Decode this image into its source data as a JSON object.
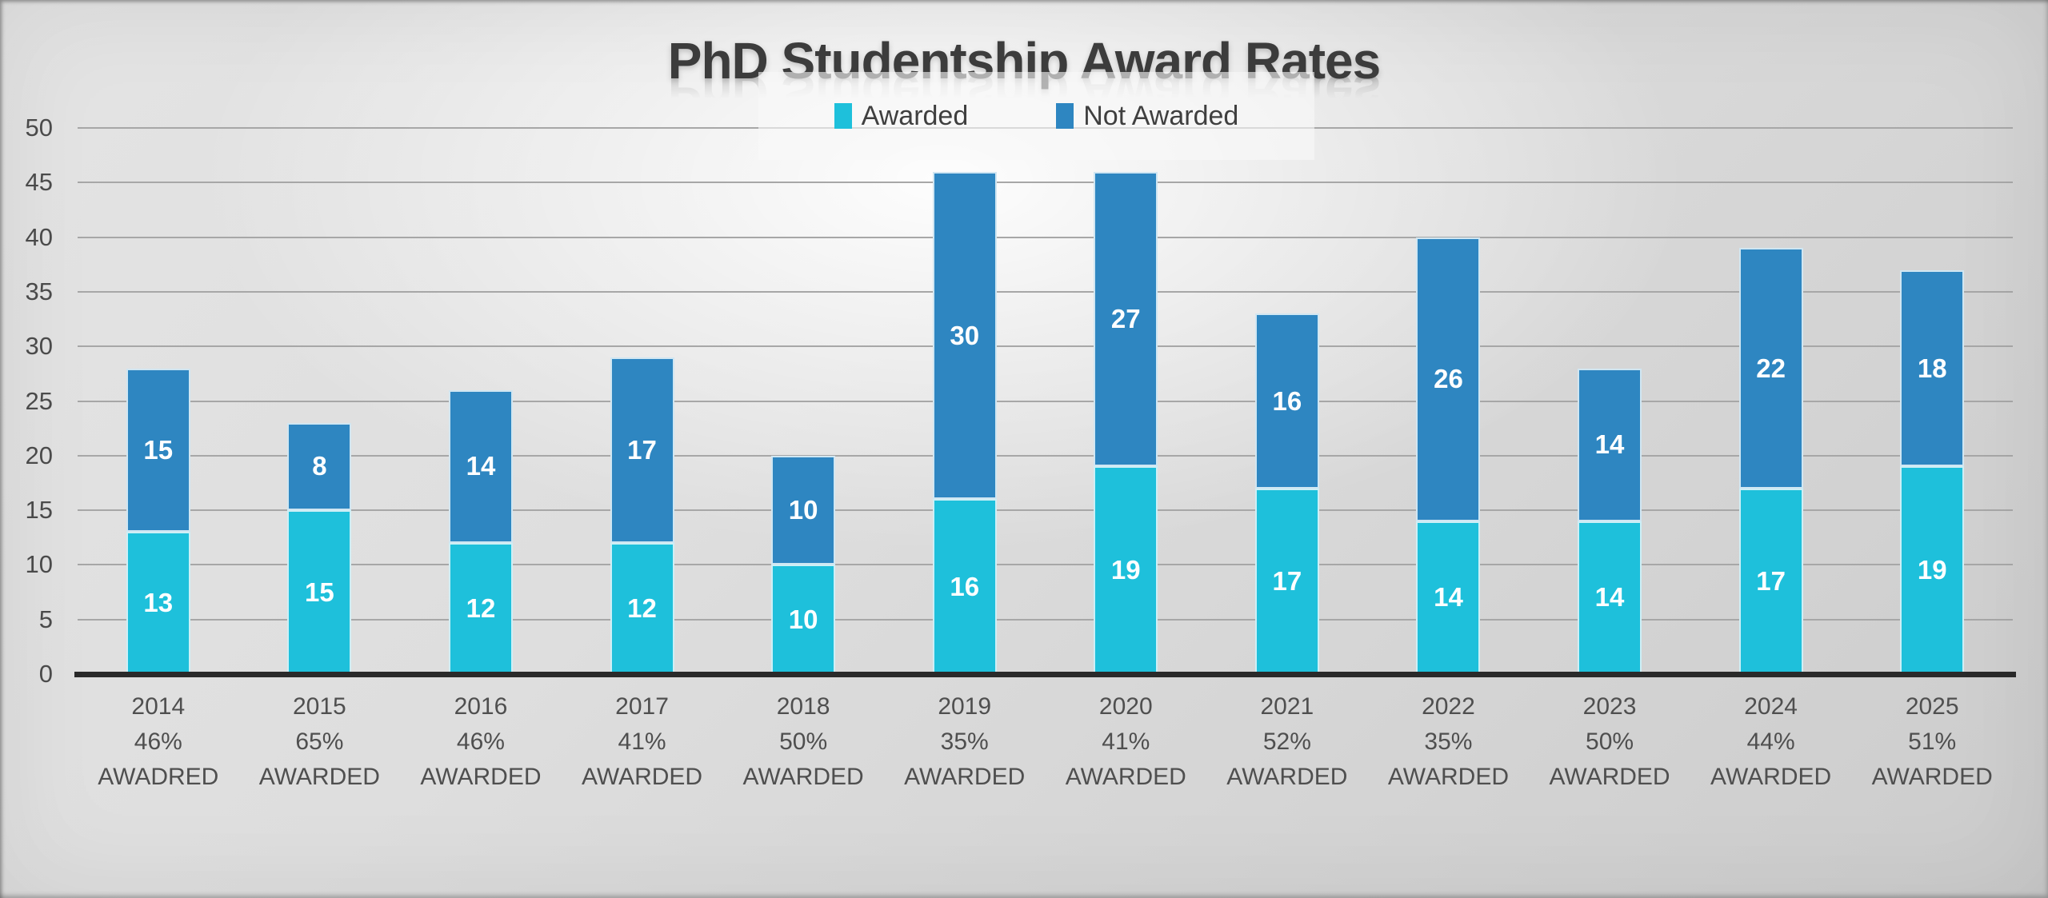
{
  "title": "PhD Studentship Award Rates",
  "legend": [
    {
      "label": "Awarded",
      "color": "#1ec0db"
    },
    {
      "label": "Not Awarded",
      "color": "#2e86c1"
    }
  ],
  "colors": {
    "awarded": "#1ec0db",
    "not_awarded": "#2e86c1",
    "axis_line": "#2a2a2a",
    "gridline": "#a7a7a7",
    "bar_value_text": "#ffffff",
    "title_text": "#3d3d3d",
    "tick_text": "#4c4c4c"
  },
  "chart_data": {
    "type": "bar",
    "stacked": true,
    "title": "PhD Studentship Award Rates",
    "xlabel": "",
    "ylabel": "",
    "ylim": [
      0,
      50
    ],
    "ytick_step": 5,
    "yticks": [
      0,
      5,
      10,
      15,
      20,
      25,
      30,
      35,
      40,
      45,
      50
    ],
    "grid": true,
    "legend_position": "top",
    "categories": [
      "2014",
      "2015",
      "2016",
      "2017",
      "2018",
      "2019",
      "2020",
      "2021",
      "2022",
      "2023",
      "2024",
      "2025"
    ],
    "series": [
      {
        "name": "Awarded",
        "color": "#1ec0db",
        "values": [
          13,
          15,
          12,
          12,
          10,
          16,
          19,
          17,
          14,
          14,
          17,
          19
        ]
      },
      {
        "name": "Not Awarded",
        "color": "#2e86c1",
        "values": [
          15,
          8,
          14,
          17,
          10,
          30,
          27,
          16,
          26,
          14,
          22,
          18
        ]
      }
    ],
    "totals": [
      28,
      23,
      26,
      29,
      20,
      46,
      46,
      33,
      40,
      28,
      39,
      37
    ],
    "pct_labels": [
      "46%",
      "65%",
      "46%",
      "41%",
      "50%",
      "35%",
      "41%",
      "52%",
      "35%",
      "50%",
      "44%",
      "51%"
    ],
    "caption_labels": [
      "AWADRED",
      "AWARDED",
      "AWARDED",
      "AWARDED",
      "AWARDED",
      "AWARDED",
      "AWARDED",
      "AWARDED",
      "AWARDED",
      "AWARDED",
      "AWARDED",
      "AWARDED"
    ]
  }
}
